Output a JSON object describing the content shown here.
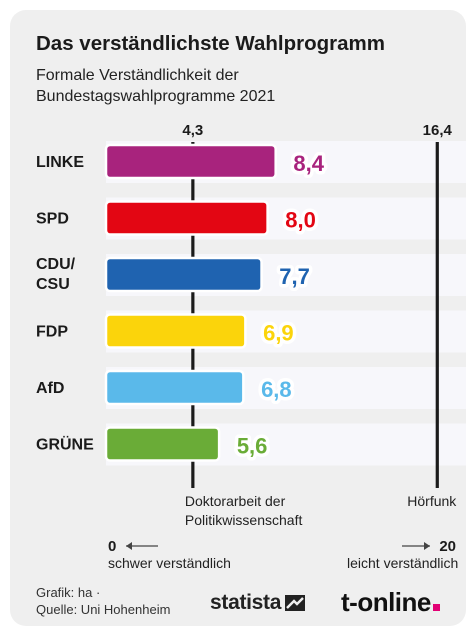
{
  "header": {
    "title": "Das verständlichste Wahlprogramm",
    "subtitle": "Formale Verständlichkeit der Bundestagswahlprogramme 2021"
  },
  "chart_data": {
    "type": "bar",
    "orientation": "horizontal",
    "title": "Das verständlichste Wahlprogramm",
    "subtitle": "Formale Verständlichkeit der Bundestagswahlprogramme 2021",
    "categories": [
      "LINKE",
      "SPD",
      "CDU/ CSU",
      "FDP",
      "AfD",
      "GRÜNE"
    ],
    "values": [
      8.4,
      8.0,
      7.7,
      6.9,
      6.8,
      5.6
    ],
    "value_labels": [
      "8,4",
      "8,0",
      "7,7",
      "6,9",
      "6,8",
      "5,6"
    ],
    "colors": [
      "#a8237d",
      "#e30613",
      "#1f63b0",
      "#fbd40b",
      "#5ab9ea",
      "#6aac37"
    ],
    "reference_lines": [
      {
        "value": 4.3,
        "label": "4,3",
        "note": "Doktorarbeit der Politikwissenschaft"
      },
      {
        "value": 16.4,
        "label": "16,4",
        "note": "Hörfunk"
      }
    ],
    "xlim": [
      0,
      20
    ],
    "scale": {
      "min_label": "0",
      "min_text": "schwer verständlich",
      "max_label": "20",
      "max_text": "leicht verständlich"
    },
    "grid": false
  },
  "footer": {
    "credit": "Grafik: ha ·",
    "source": "Quelle: Uni Hohenheim",
    "logo_statista": "statista",
    "logo_tonline": "t-online"
  },
  "colors": {
    "background": "#efefef",
    "row_band": "#f7f7fb",
    "text": "#1b1b1b",
    "tonline_accent": "#e20074"
  },
  "icons": [
    "statista-logo-icon",
    "scale-arrow-icon"
  ]
}
